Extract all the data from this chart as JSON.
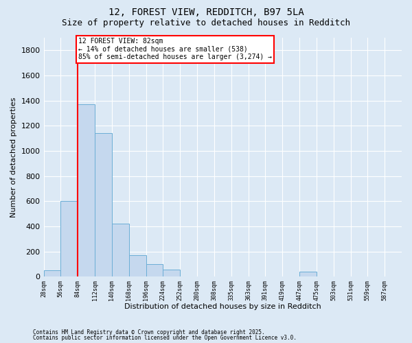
{
  "title": "12, FOREST VIEW, REDDITCH, B97 5LA",
  "subtitle": "Size of property relative to detached houses in Redditch",
  "xlabel": "Distribution of detached houses by size in Redditch",
  "ylabel": "Number of detached properties",
  "footnote1": "Contains HM Land Registry data © Crown copyright and database right 2025.",
  "footnote2": "Contains public sector information licensed under the Open Government Licence v3.0.",
  "bin_labels": [
    "28sqm",
    "56sqm",
    "84sqm",
    "112sqm",
    "140sqm",
    "168sqm",
    "196sqm",
    "224sqm",
    "252sqm",
    "280sqm",
    "308sqm",
    "335sqm",
    "363sqm",
    "391sqm",
    "419sqm",
    "447sqm",
    "475sqm",
    "503sqm",
    "531sqm",
    "559sqm",
    "587sqm"
  ],
  "bar_values": [
    50,
    600,
    1370,
    1140,
    420,
    170,
    100,
    55,
    5,
    0,
    0,
    0,
    0,
    0,
    0,
    40,
    0,
    0,
    0,
    0,
    0
  ],
  "bar_color": "#c5d8ee",
  "bar_edge_color": "#6baed6",
  "background_color": "#dce9f5",
  "grid_color": "#ffffff",
  "vline_x": 84,
  "annotation_line1": "12 FOREST VIEW: 82sqm",
  "annotation_line2": "← 14% of detached houses are smaller (538)",
  "annotation_line3": "85% of semi-detached houses are larger (3,274) →",
  "annotation_box_facecolor": "#ffffff",
  "annotation_box_edgecolor": "red",
  "vline_color": "red",
  "ylim": [
    0,
    1900
  ],
  "yticks": [
    0,
    200,
    400,
    600,
    800,
    1000,
    1200,
    1400,
    1600,
    1800
  ],
  "title_fontsize": 10,
  "subtitle_fontsize": 9,
  "ylabel_fontsize": 8,
  "xlabel_fontsize": 8,
  "ytick_fontsize": 8,
  "xtick_fontsize": 6,
  "footnote_fontsize": 5.5,
  "annotation_fontsize": 7
}
